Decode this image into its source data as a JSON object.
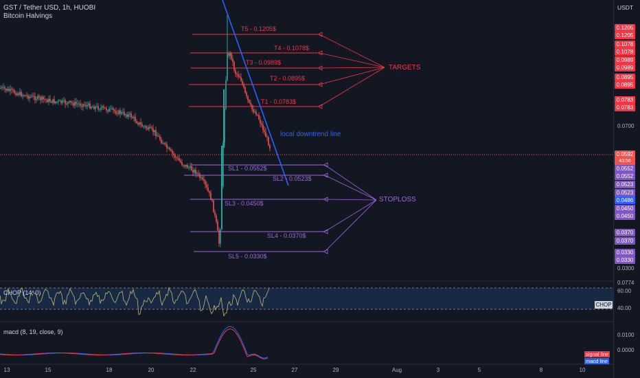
{
  "header": {
    "title": "GST / Tether USD, 1h, HUOBI",
    "indicator": "Bitcoin Halvings",
    "currency": "USDT"
  },
  "price_tags": {
    "targets": [
      "0.1205",
      "0.1205",
      "0.1078",
      "0.1078",
      "0.0989",
      "0.0989",
      "0.0895",
      "0.0895",
      "0.0783",
      "0.0783"
    ],
    "current": "0.0592",
    "countdown": "43:56",
    "stops": [
      "0.0552",
      "0.0552",
      "0.0523",
      "0.0523",
      "0.0486",
      "0.0450",
      "0.0450",
      "0.0370",
      "0.0370",
      "0.0330",
      "0.0330"
    ]
  },
  "price_ticks": [
    "0.0700",
    "0.0300"
  ],
  "chop_ticks": [
    "0.0774",
    "60.00",
    "40.00"
  ],
  "chop_tag": "CHOP",
  "macd_ticks": [
    "0.0100",
    "0.0000"
  ],
  "macd_tags": {
    "signal": "signal line",
    "macd": "macd line"
  },
  "x_ticks": [
    "13",
    "15",
    "18",
    "20",
    "22",
    "25",
    "27",
    "29",
    "Aug",
    "3",
    "5",
    "8",
    "10"
  ],
  "levels": {
    "targets": [
      "T5 - 0.1205$",
      "T4 - 0.1078$",
      "T3 - 0.0989$",
      "T2 - 0.0895$",
      "T1 - 0.0783$"
    ],
    "stoploss": [
      "SL1 - 0.0552$",
      "SL2 - 0.0523$",
      "SL3 - 0.0450$",
      "SL4 - 0.0370$",
      "SL5 - 0.0330$"
    ]
  },
  "callouts": {
    "targets": "TARGETS",
    "stoploss": "STOPLOSS",
    "trendline": "local downtrend line"
  },
  "indicators": {
    "chop": "CHOP (14, 0)",
    "macd": "macd (8, 19, close, 9)"
  },
  "colors": {
    "background": "#131722",
    "target": "#f23645",
    "stop": "#9c6ade",
    "trendline": "#2962ff",
    "up": "#26a69a",
    "down": "#ef5350"
  }
}
